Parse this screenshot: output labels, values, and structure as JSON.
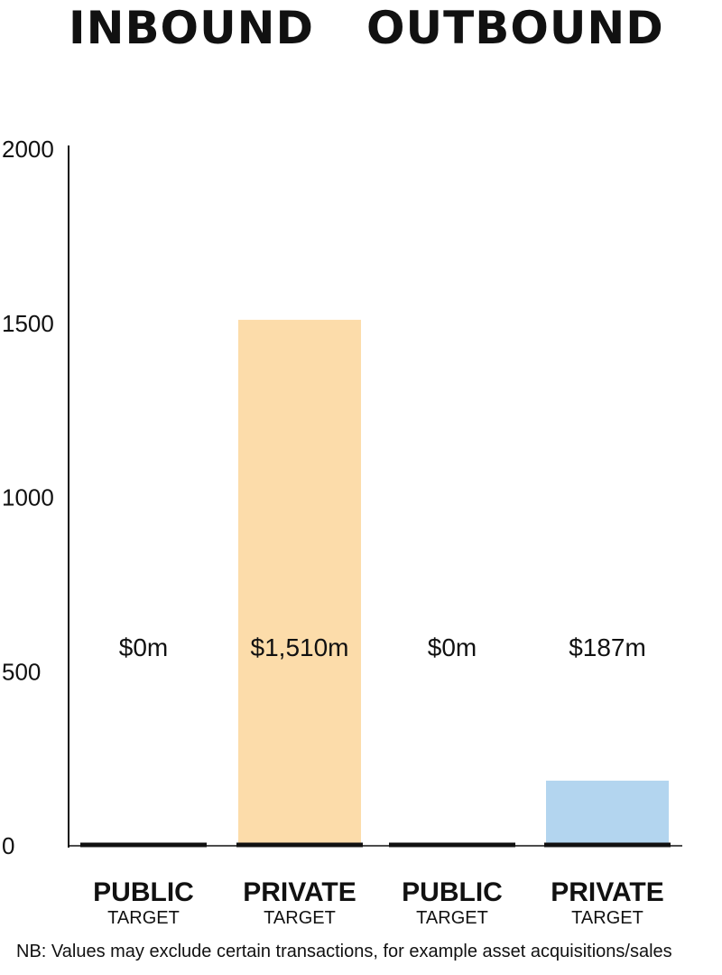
{
  "groups": {
    "inbound": "INBOUND",
    "outbound": "OUTBOUND"
  },
  "footnote": "NB: Values may exclude certain transactions, for example asset acquisitions/sales",
  "chart_data": {
    "type": "bar",
    "title": "",
    "xlabel": "",
    "ylabel": "",
    "ylim": [
      0,
      2000
    ],
    "yticks": [
      0,
      500,
      1000,
      1500,
      2000
    ],
    "grid": false,
    "legend": "none",
    "categories": [
      {
        "group": "INBOUND",
        "label": "PUBLIC",
        "sublabel": "TARGET",
        "value": 0,
        "data_label": "$0m",
        "color": "#fcdcaa"
      },
      {
        "group": "INBOUND",
        "label": "PRIVATE",
        "sublabel": "TARGET",
        "value": 1510,
        "data_label": "$1,510m",
        "color": "#fcdcaa"
      },
      {
        "group": "OUTBOUND",
        "label": "PUBLIC",
        "sublabel": "TARGET",
        "value": 0,
        "data_label": "$0m",
        "color": "#b3d5ef"
      },
      {
        "group": "OUTBOUND",
        "label": "PRIVATE",
        "sublabel": "TARGET",
        "value": 187,
        "data_label": "$187m",
        "color": "#b3d5ef"
      }
    ],
    "values": [
      0,
      1510,
      0,
      187
    ],
    "data_label_position": "fixed height near 570"
  }
}
